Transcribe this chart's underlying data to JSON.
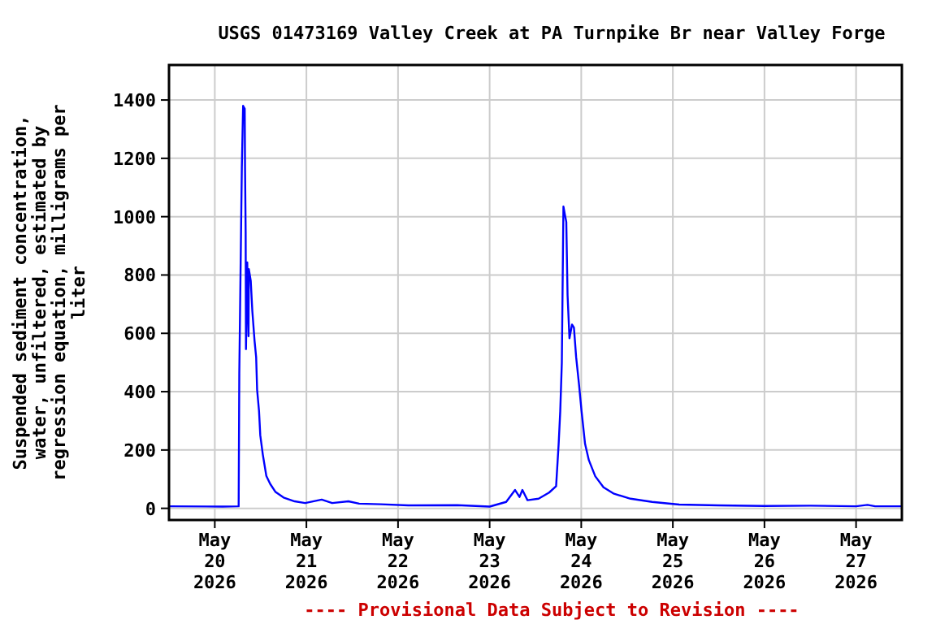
{
  "chart_data": {
    "type": "line",
    "title": "USGS 01473169 Valley Creek at PA Turnpike Br near Valley Forge",
    "ylabel": "Suspended sediment concentration, water, unfiltered, estimated by regression equation, milligrams per liter",
    "annotations": [
      "---- Provisional Data Subject to Revision ----"
    ],
    "x": [
      "2026-05-19T12:00",
      "2026-05-20T02:00",
      "2026-05-20T06:15",
      "2026-05-20T06:25",
      "2026-05-20T07:05",
      "2026-05-20T07:25",
      "2026-05-20T07:50",
      "2026-05-20T07:55",
      "2026-05-20T08:05",
      "2026-05-20T08:10",
      "2026-05-20T08:30",
      "2026-05-20T08:50",
      "2026-05-20T08:55",
      "2026-05-20T09:25",
      "2026-05-20T09:50",
      "2026-05-20T10:25",
      "2026-05-20T10:50",
      "2026-05-20T11:05",
      "2026-05-20T11:35",
      "2026-05-20T11:55",
      "2026-05-20T12:35",
      "2026-05-20T13:30",
      "2026-05-20T14:30",
      "2026-05-20T15:55",
      "2026-05-20T18:00",
      "2026-05-20T20:55",
      "2026-05-20T23:40",
      "2026-05-21T04:00",
      "2026-05-21T06:45",
      "2026-05-21T11:00",
      "2026-05-21T13:50",
      "2026-05-21T19:30",
      "2026-05-22T02:40",
      "2026-05-22T15:30",
      "2026-05-23T00:00",
      "2026-05-23T04:20",
      "2026-05-23T06:40",
      "2026-05-23T07:50",
      "2026-05-23T08:35",
      "2026-05-23T09:55",
      "2026-05-23T12:50",
      "2026-05-23T15:35",
      "2026-05-23T17:25",
      "2026-05-23T18:05",
      "2026-05-23T18:30",
      "2026-05-23T18:55",
      "2026-05-23T19:20",
      "2026-05-23T19:40",
      "2026-05-23T20:05",
      "2026-05-23T20:25",
      "2026-05-23T20:55",
      "2026-05-23T21:35",
      "2026-05-23T22:05",
      "2026-05-23T22:40",
      "2026-05-23T23:25",
      "2026-05-24T00:05",
      "2026-05-24T01:00",
      "2026-05-24T02:00",
      "2026-05-24T03:40",
      "2026-05-24T05:50",
      "2026-05-24T08:35",
      "2026-05-24T12:55",
      "2026-05-24T18:35",
      "2026-05-25T01:40",
      "2026-05-25T12:00",
      "2026-05-26T00:00",
      "2026-05-26T12:00",
      "2026-05-27T00:00",
      "2026-05-27T03:00",
      "2026-05-27T05:00",
      "2026-05-27T12:00"
    ],
    "series": [
      {
        "color": "#0000ff",
        "values": [
          7,
          6,
          7,
          462,
          1170,
          1380,
          1370,
          1170,
          947,
          546,
          843,
          590,
          820,
          780,
          676,
          574,
          518,
          407,
          334,
          250,
          184,
          111,
          84,
          56,
          37,
          24,
          18,
          30,
          18,
          24,
          16,
          14,
          10,
          11,
          6,
          22,
          63,
          39,
          63,
          28,
          33,
          54,
          76,
          221,
          333,
          500,
          1035,
          1010,
          982,
          731,
          583,
          630,
          620,
          518,
          425,
          333,
          221,
          165,
          110,
          72,
          50,
          33,
          22,
          13,
          10,
          8,
          9,
          7,
          12,
          7,
          7
        ]
      }
    ],
    "xlim": [
      "2026-05-19T12:00",
      "2026-05-27T12:00"
    ],
    "xticks": [
      {
        "value": "2026-05-20",
        "label": "May\n20\n2026"
      },
      {
        "value": "2026-05-21",
        "label": "May\n21\n2026"
      },
      {
        "value": "2026-05-22",
        "label": "May\n22\n2026"
      },
      {
        "value": "2026-05-23",
        "label": "May\n23\n2026"
      },
      {
        "value": "2026-05-24",
        "label": "May\n24\n2026"
      },
      {
        "value": "2026-05-25",
        "label": "May\n25\n2026"
      },
      {
        "value": "2026-05-26",
        "label": "May\n26\n2026"
      },
      {
        "value": "2026-05-27",
        "label": "May\n27\n2026"
      }
    ],
    "ylim": [
      -40,
      1520
    ],
    "yticks": [
      0,
      200,
      400,
      600,
      800,
      1000,
      1200,
      1400
    ],
    "grid": true,
    "marker": "none",
    "line_style": "solid"
  }
}
